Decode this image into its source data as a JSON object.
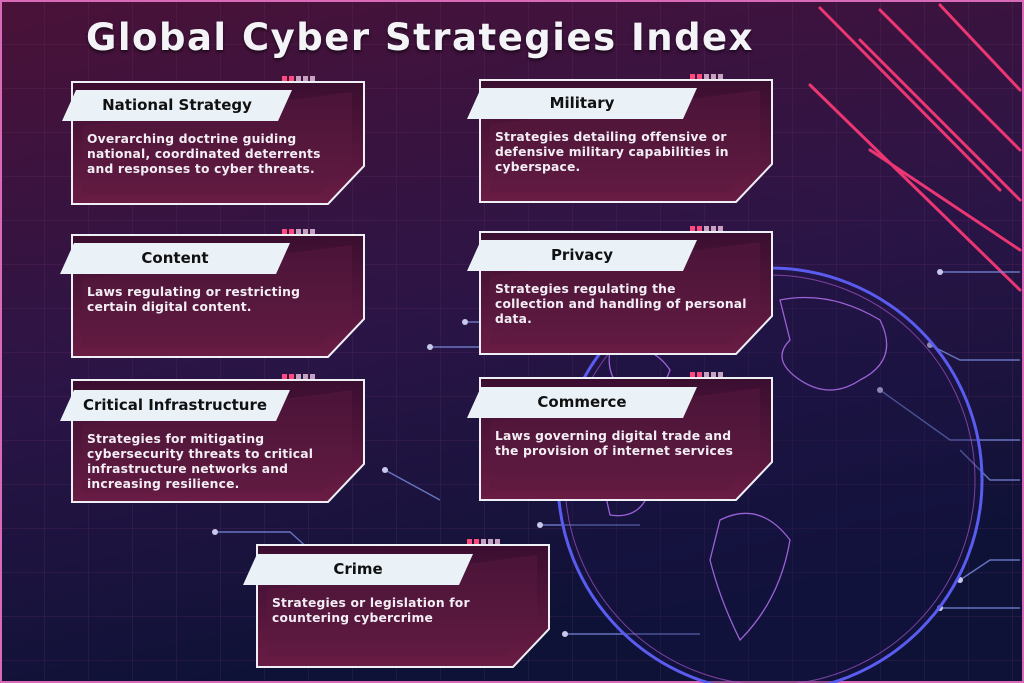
{
  "title": "Global Cyber Strategies Index",
  "cards": [
    {
      "label": "National Strategy",
      "description": "Overarching doctrine guiding national, coordinated deterrents and responses to cyber threats."
    },
    {
      "label": "Military",
      "description": "Strategies detailing offensive or defensive military capabilities in cyberspace."
    },
    {
      "label": "Content",
      "description": "Laws regulating or restricting certain digital content."
    },
    {
      "label": "Privacy",
      "description": "Strategies regulating the collection and handling of personal data."
    },
    {
      "label": "Critical Infrastructure",
      "description": "Strategies for mitigating cybersecurity threats to critical infrastructure networks and increasing resilience."
    },
    {
      "label": "Commerce",
      "description": "Laws governing digital trade and the provision of internet services"
    },
    {
      "label": "Crime",
      "description": "Strategies or legislation for countering cybercrime"
    }
  ]
}
